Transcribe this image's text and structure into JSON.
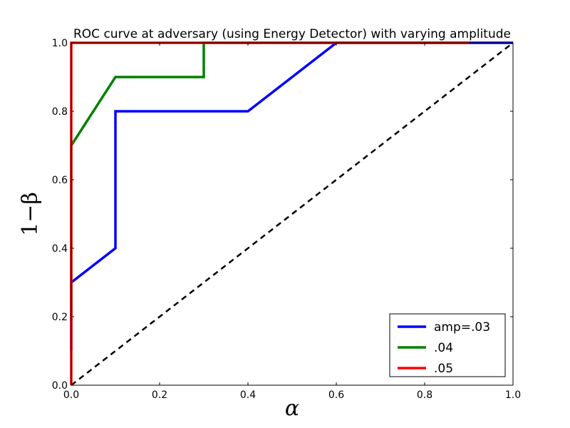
{
  "chart_data": {
    "type": "line",
    "title": "ROC curve at adversary (using Energy Detector) with varying amplitude",
    "xlabel": "α",
    "ylabel": "1−β",
    "xlim": [
      0.0,
      1.0
    ],
    "ylim": [
      0.0,
      1.0
    ],
    "xticks": [
      "0.0",
      "0.2",
      "0.4",
      "0.6",
      "0.8",
      "1.0"
    ],
    "yticks": [
      "0.0",
      "0.2",
      "0.4",
      "0.6",
      "0.8",
      "1.0"
    ],
    "grid": false,
    "legend_position": "lower-right",
    "series": [
      {
        "name": "amp=.03",
        "color": "#0000ff",
        "x": [
          0.0,
          0.0,
          0.1,
          0.1,
          0.4,
          0.6,
          1.0
        ],
        "y": [
          0.1,
          0.3,
          0.4,
          0.8,
          0.8,
          1.0,
          1.0
        ]
      },
      {
        "name": ".04",
        "color": "#008000",
        "x": [
          0.0,
          0.0,
          0.1,
          0.3,
          0.3,
          0.9
        ],
        "y": [
          0.2,
          0.7,
          0.9,
          0.9,
          1.0,
          1.0
        ]
      },
      {
        "name": ".05",
        "color": "#ff0000",
        "x": [
          0.0,
          0.0,
          0.9
        ],
        "y": [
          0.0,
          1.0,
          1.0
        ]
      }
    ],
    "reference_line": {
      "style": "dashed",
      "color": "#000000",
      "x": [
        0.0,
        1.0
      ],
      "y": [
        0.0,
        1.0
      ]
    }
  }
}
